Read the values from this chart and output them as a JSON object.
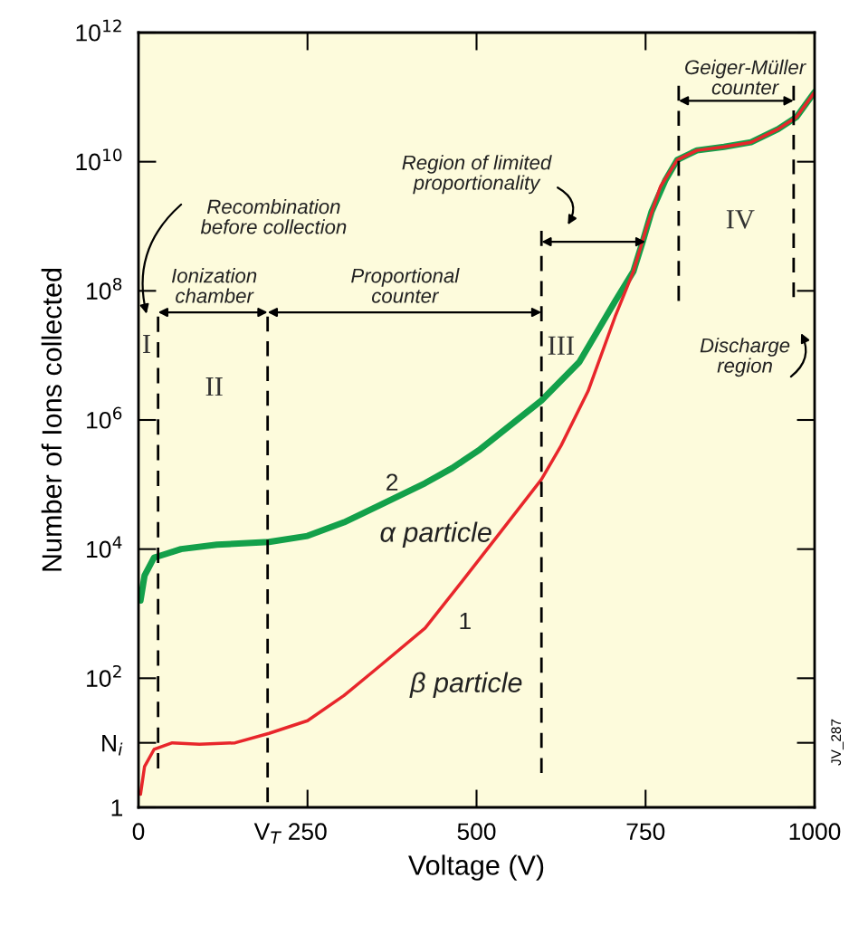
{
  "chart_data": {
    "type": "line",
    "xlabel": "Voltage (V)",
    "ylabel": "Number of Ions collected",
    "log": "y",
    "grid": false,
    "xlim": [
      0,
      1000
    ],
    "xticks": [
      0,
      {
        "value": 191,
        "label": "V$_{T}$"
      },
      250,
      500,
      750,
      1000
    ],
    "ylim": [
      1,
      1000000000000.0
    ],
    "yticks": [
      1,
      {
        "value": 10,
        "label": "N$_{i}$"
      },
      {
        "value": 100,
        "label": "10$^{2}$"
      },
      {
        "value": 10000.0,
        "label": "10$^{4}$"
      },
      {
        "value": 1000000.0,
        "label": "10$^{6}$"
      },
      {
        "value": 100000000.0,
        "label": "10$^{8}$"
      },
      {
        "value": 10000000000.0,
        "label": "10$^{10}$"
      },
      {
        "value": 1000000000000.0,
        "label": "10$^{12}$"
      }
    ],
    "series": [
      {
        "color": "#13a04a",
        "line_style": "solid",
        "x": [
          3,
          9,
          23,
          32,
          63,
          116,
          193,
          250,
          304,
          357,
          424,
          464,
          505,
          596,
          652,
          705,
          732,
          746,
          759,
          779,
          797,
          826,
          866,
          906,
          946,
          973,
          1000
        ],
        "values": [
          1600,
          3900,
          7400,
          7900,
          10000.0,
          11700.0,
          12900.0,
          16000.0,
          26000.0,
          48000.0,
          105000.0,
          180000.0,
          350000.0,
          2000000.0,
          7900000.0,
          69000000.0,
          200000000.0,
          590000000.0,
          1700000000.0,
          5100000000.0,
          10700000000.0,
          15000000000.0,
          17000000000.0,
          20000000000.0,
          32000000000.0,
          49000000000.0,
          120000000000.0
        ]
      },
      {
        "color": "#e8262b",
        "line_style": "solid",
        "x": [
          3,
          9,
          23,
          50,
          90,
          143,
          193,
          250,
          304,
          357,
          424,
          478,
          531,
          596,
          625,
          665,
          705,
          732,
          752,
          772,
          797,
          826,
          866,
          906,
          946,
          973,
          1000
        ],
        "values": [
          1.6,
          4.3,
          7.9,
          10,
          9.5,
          10,
          14,
          22,
          54,
          155,
          600,
          3100,
          16000.0,
          120000.0,
          400000.0,
          2800000.0,
          40000000.0,
          200000000.0,
          1000000000.0,
          4100000000.0,
          10700000000.0,
          15000000000.0,
          17000000000.0,
          20000000000.0,
          32000000000.0,
          49000000000.0,
          120000000000.0
        ]
      },
      {
        "color": "#000000",
        "line_style": "dashed",
        "x": [
          29,
          29
        ],
        "values": [
          4,
          40000000.0
        ]
      },
      {
        "color": "#000000",
        "line_style": "dashed",
        "x": [
          191,
          191
        ],
        "values": [
          1.2,
          40000000.0
        ]
      },
      {
        "color": "#000000",
        "line_style": "dashed",
        "x": [
          596,
          596
        ],
        "values": [
          3.4,
          850000000.0
        ]
      },
      {
        "color": "#000000",
        "line_style": "dashed",
        "x": [
          799,
          799
        ],
        "values": [
          70000000.0,
          150000000000.0
        ]
      },
      {
        "color": "#000000",
        "line_style": "dashed",
        "x": [
          969,
          969
        ],
        "values": [
          80000000.0,
          150000000000.0
        ]
      }
    ],
    "annotations": [
      "Recombination\nbefore collection",
      "Ionization\nchamber",
      "Proportional\ncounter",
      "Region of limited\nproportionality",
      "Geiger-Müller\ncounter",
      "Discharge\nregion",
      "I",
      "II",
      "III",
      "IV",
      "2",
      "α particle",
      "1",
      "β particle",
      "JV_287"
    ]
  }
}
